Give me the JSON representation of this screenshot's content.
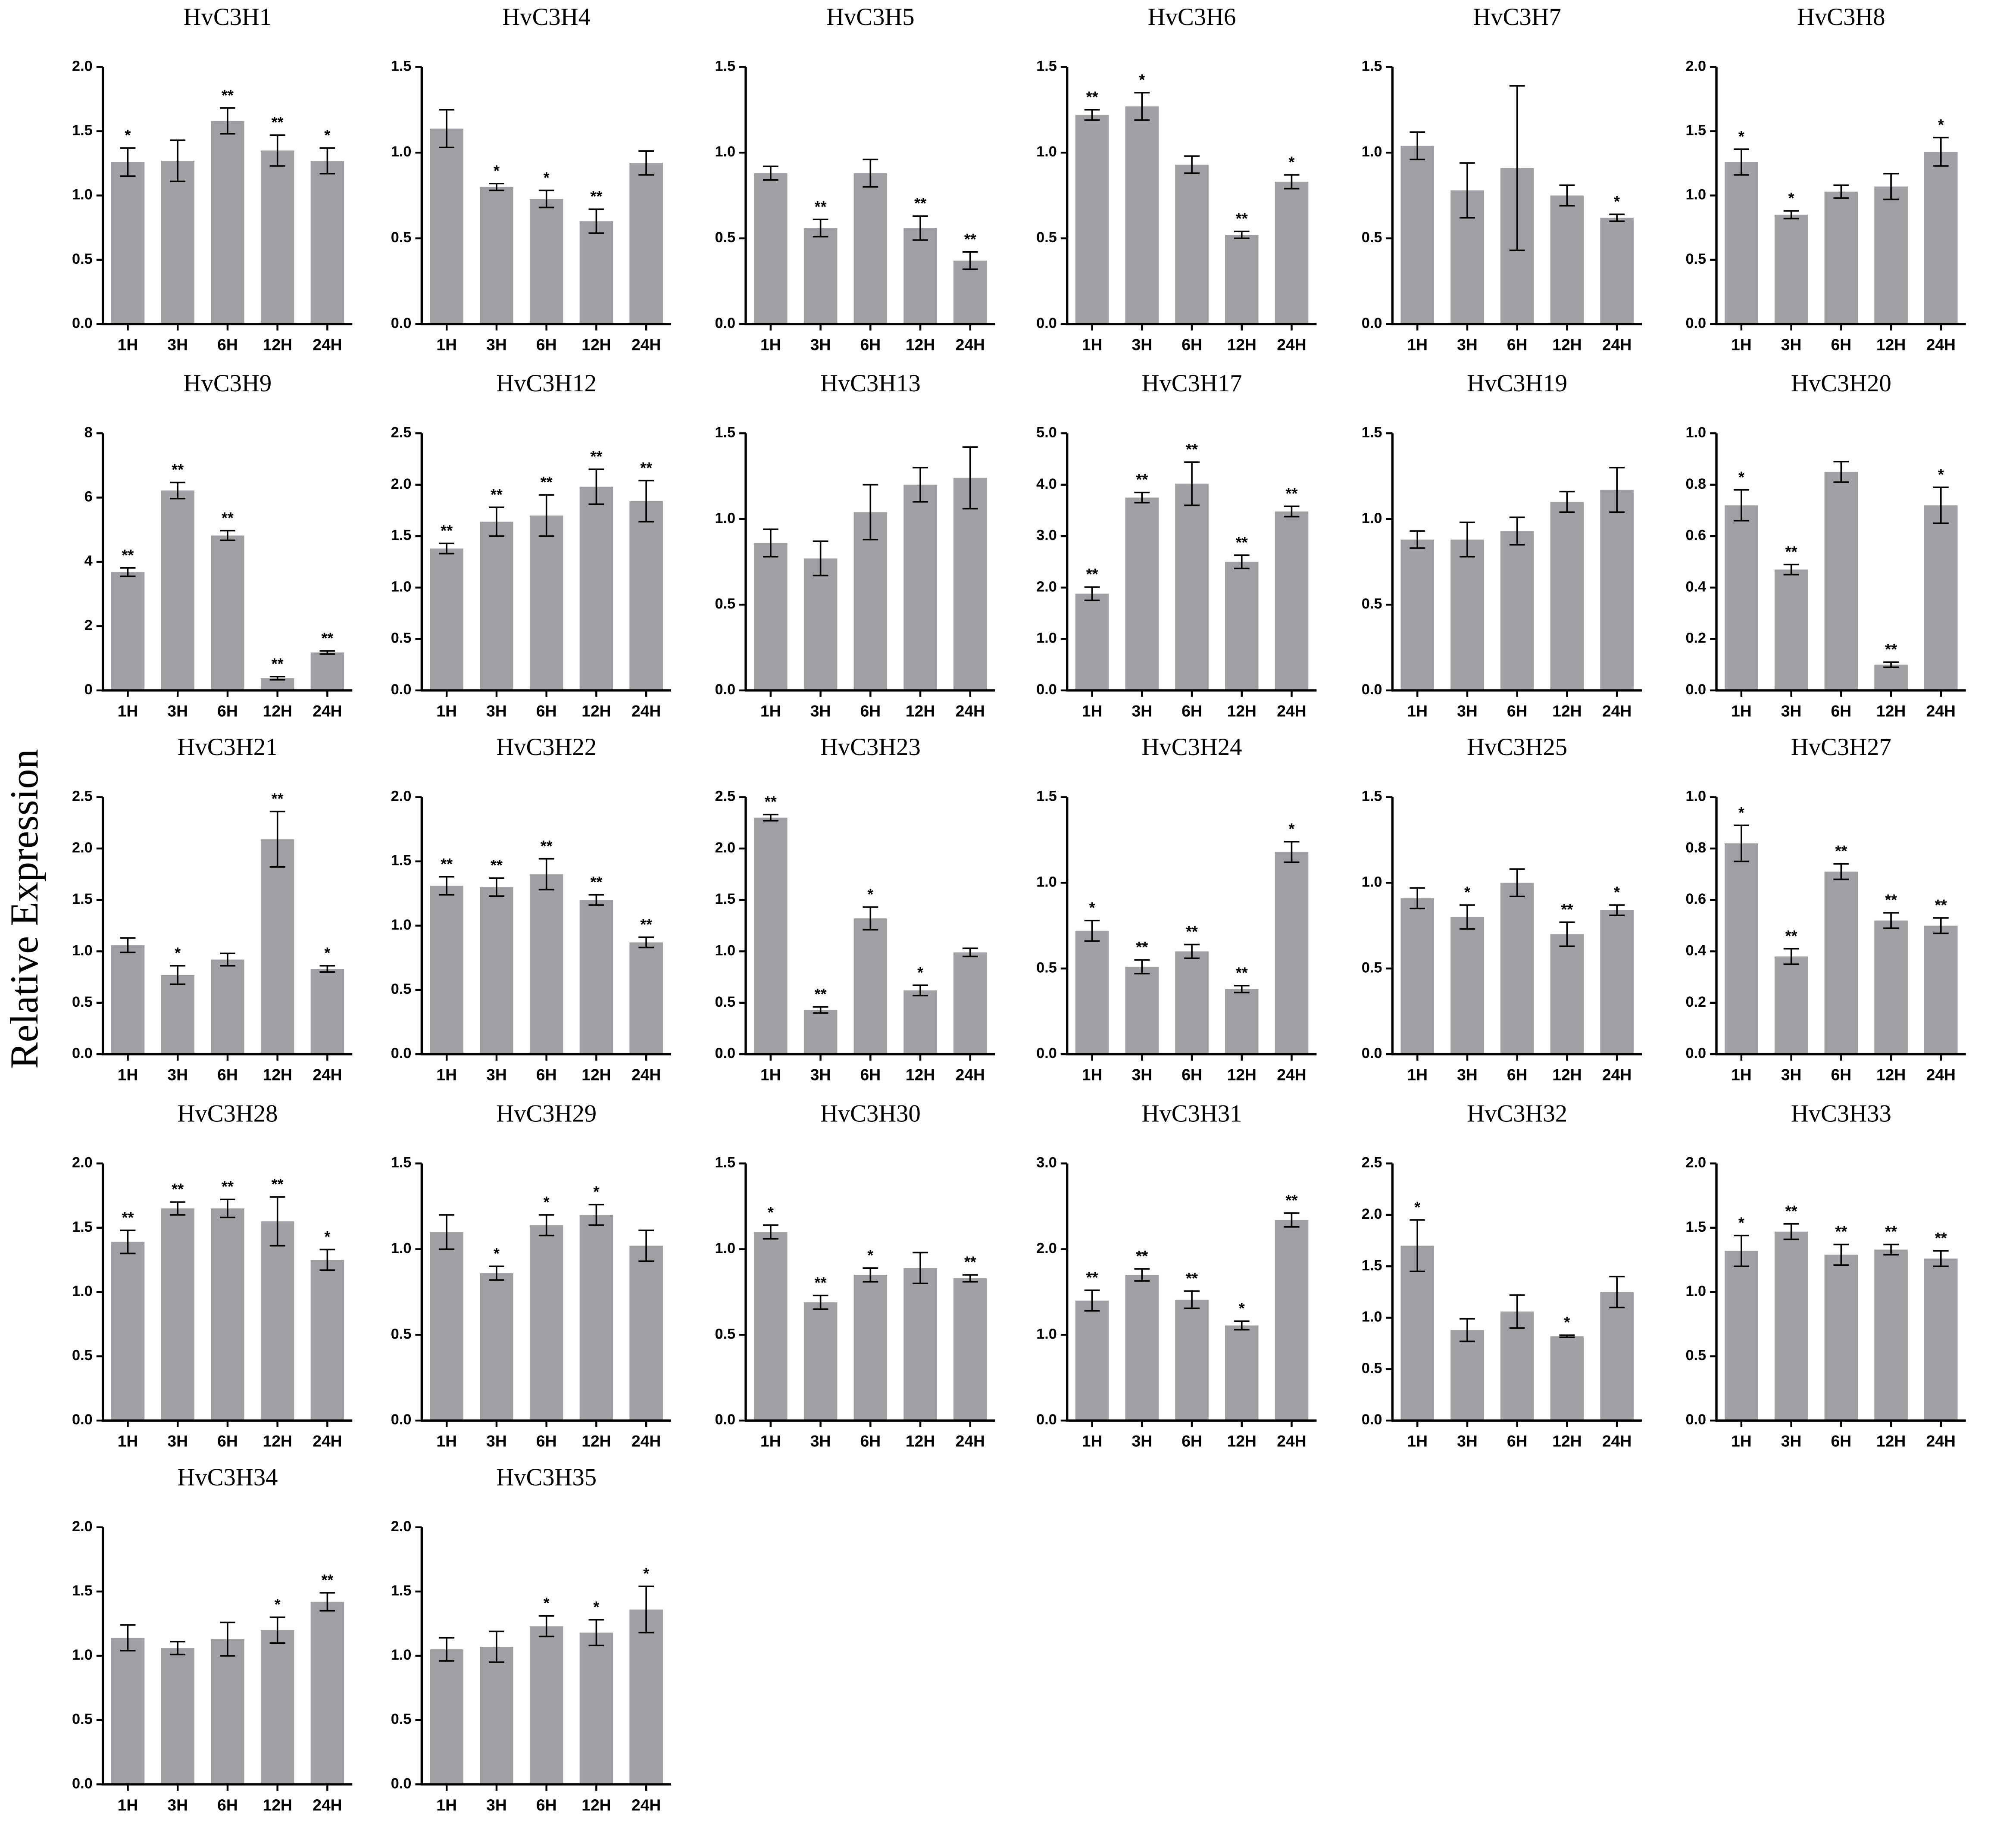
{
  "y_label": "Relative Expression",
  "chart_data": [
    {
      "type": "bar",
      "title": "HvC3H1",
      "categories": [
        "1H",
        "3H",
        "6H",
        "12H",
        "24H"
      ],
      "values": [
        1.26,
        1.27,
        1.58,
        1.35,
        1.27
      ],
      "errors": [
        0.11,
        0.16,
        0.1,
        0.12,
        0.1
      ],
      "annotations": [
        "*",
        null,
        "**",
        "**",
        "*"
      ],
      "ylim": [
        0,
        2
      ],
      "yticks": [
        {
          "value": 0,
          "label": "0.0"
        },
        0.5,
        {
          "value": 1,
          "label": "1.0"
        },
        1.5,
        {
          "value": 2,
          "label": "2.0"
        }
      ],
      "color": "#a0a0a4"
    },
    {
      "type": "bar",
      "title": "HvC3H4",
      "categories": [
        "1H",
        "3H",
        "6H",
        "12H",
        "24H"
      ],
      "values": [
        1.14,
        0.8,
        0.73,
        0.6,
        0.94
      ],
      "errors": [
        0.11,
        0.02,
        0.05,
        0.07,
        0.07
      ],
      "annotations": [
        null,
        "*",
        "*",
        "**",
        null
      ],
      "ylim": [
        0,
        1.5
      ],
      "yticks": [
        {
          "value": 0,
          "label": "0.0"
        },
        0.5,
        {
          "value": 1,
          "label": "1.0"
        },
        1.5
      ],
      "color": "#a0a0a4"
    },
    {
      "type": "bar",
      "title": "HvC3H5",
      "categories": [
        "1H",
        "3H",
        "6H",
        "12H",
        "24H"
      ],
      "values": [
        0.88,
        0.56,
        0.88,
        0.56,
        0.37
      ],
      "errors": [
        0.04,
        0.05,
        0.08,
        0.07,
        0.05
      ],
      "annotations": [
        null,
        "**",
        null,
        "**",
        "**"
      ],
      "ylim": [
        0,
        1.5
      ],
      "yticks": [
        {
          "value": 0,
          "label": "0.0"
        },
        0.5,
        {
          "value": 1,
          "label": "1.0"
        },
        1.5
      ],
      "color": "#a0a0a4"
    },
    {
      "type": "bar",
      "title": "HvC3H6",
      "categories": [
        "1H",
        "3H",
        "6H",
        "12H",
        "24H"
      ],
      "values": [
        1.22,
        1.27,
        0.93,
        0.52,
        0.83
      ],
      "errors": [
        0.03,
        0.08,
        0.05,
        0.02,
        0.04
      ],
      "annotations": [
        "**",
        "*",
        null,
        "**",
        "*"
      ],
      "ylim": [
        0,
        1.5
      ],
      "yticks": [
        {
          "value": 0,
          "label": "0.0"
        },
        0.5,
        {
          "value": 1,
          "label": "1.0"
        },
        1.5
      ],
      "color": "#a0a0a4"
    },
    {
      "type": "bar",
      "title": "HvC3H7",
      "categories": [
        "1H",
        "3H",
        "6H",
        "12H",
        "24H"
      ],
      "values": [
        1.04,
        0.78,
        0.91,
        0.75,
        0.62
      ],
      "errors": [
        0.08,
        0.16,
        0.48,
        0.06,
        0.02
      ],
      "annotations": [
        null,
        null,
        null,
        null,
        "*"
      ],
      "ylim": [
        0,
        1.5
      ],
      "yticks": [
        {
          "value": 0,
          "label": "0.0"
        },
        0.5,
        {
          "value": 1,
          "label": "1.0"
        },
        1.5
      ],
      "color": "#a0a0a4"
    },
    {
      "type": "bar",
      "title": "HvC3H8",
      "categories": [
        "1H",
        "3H",
        "6H",
        "12H",
        "24H"
      ],
      "values": [
        1.26,
        0.85,
        1.03,
        1.07,
        1.34
      ],
      "errors": [
        0.1,
        0.03,
        0.05,
        0.1,
        0.11
      ],
      "annotations": [
        "*",
        "*",
        null,
        null,
        "*"
      ],
      "ylim": [
        0,
        2
      ],
      "yticks": [
        {
          "value": 0,
          "label": "0.0"
        },
        0.5,
        {
          "value": 1,
          "label": "1.0"
        },
        1.5,
        {
          "value": 2,
          "label": "2.0"
        }
      ],
      "color": "#a0a0a4"
    },
    {
      "type": "bar",
      "title": "HvC3H9",
      "categories": [
        "1H",
        "3H",
        "6H",
        "12H",
        "24H"
      ],
      "values": [
        3.68,
        6.22,
        4.82,
        0.38,
        1.18
      ],
      "errors": [
        0.13,
        0.25,
        0.15,
        0.05,
        0.05
      ],
      "annotations": [
        "**",
        "**",
        "**",
        "**",
        "**"
      ],
      "ylim": [
        0,
        8
      ],
      "yticks": [
        0,
        2,
        4,
        6,
        8
      ],
      "color": "#a0a0a4"
    },
    {
      "type": "bar",
      "title": "HvC3H12",
      "categories": [
        "1H",
        "3H",
        "6H",
        "12H",
        "24H"
      ],
      "values": [
        1.38,
        1.64,
        1.7,
        1.98,
        1.84
      ],
      "errors": [
        0.05,
        0.14,
        0.2,
        0.17,
        0.2
      ],
      "annotations": [
        "**",
        "**",
        "**",
        "**",
        "**"
      ],
      "ylim": [
        0,
        2.5
      ],
      "yticks": [
        {
          "value": 0,
          "label": "0.0"
        },
        0.5,
        {
          "value": 1,
          "label": "1.0"
        },
        1.5,
        {
          "value": 2,
          "label": "2.0"
        },
        2.5
      ],
      "color": "#a0a0a4"
    },
    {
      "type": "bar",
      "title": "HvC3H13",
      "categories": [
        "1H",
        "3H",
        "6H",
        "12H",
        "24H"
      ],
      "values": [
        0.86,
        0.77,
        1.04,
        1.2,
        1.24
      ],
      "errors": [
        0.08,
        0.1,
        0.16,
        0.1,
        0.18
      ],
      "annotations": [
        null,
        null,
        null,
        null,
        null
      ],
      "ylim": [
        0,
        1.5
      ],
      "yticks": [
        {
          "value": 0,
          "label": "0.0"
        },
        0.5,
        {
          "value": 1,
          "label": "1.0"
        },
        1.5
      ],
      "color": "#a0a0a4"
    },
    {
      "type": "bar",
      "title": "HvC3H17",
      "categories": [
        "1H",
        "3H",
        "6H",
        "12H",
        "24H"
      ],
      "values": [
        1.88,
        3.75,
        4.02,
        2.5,
        3.48
      ],
      "errors": [
        0.13,
        0.1,
        0.42,
        0.13,
        0.1
      ],
      "annotations": [
        "**",
        "**",
        "**",
        "**",
        "**"
      ],
      "ylim": [
        0,
        5
      ],
      "yticks": [
        {
          "value": 0,
          "label": "0.0"
        },
        {
          "value": 1,
          "label": "1.0"
        },
        {
          "value": 2,
          "label": "2.0"
        },
        {
          "value": 3,
          "label": "3.0"
        },
        {
          "value": 4,
          "label": "4.0"
        },
        {
          "value": 5,
          "label": "5.0"
        }
      ],
      "color": "#a0a0a4"
    },
    {
      "type": "bar",
      "title": "HvC3H19",
      "categories": [
        "1H",
        "3H",
        "6H",
        "12H",
        "24H"
      ],
      "values": [
        0.88,
        0.88,
        0.93,
        1.1,
        1.17
      ],
      "errors": [
        0.05,
        0.1,
        0.08,
        0.06,
        0.13
      ],
      "annotations": [
        null,
        null,
        null,
        null,
        null
      ],
      "ylim": [
        0,
        1.5
      ],
      "yticks": [
        {
          "value": 0,
          "label": "0.0"
        },
        0.5,
        {
          "value": 1,
          "label": "1.0"
        },
        1.5
      ],
      "color": "#a0a0a4"
    },
    {
      "type": "bar",
      "title": "HvC3H20",
      "categories": [
        "1H",
        "3H",
        "6H",
        "12H",
        "24H"
      ],
      "values": [
        0.72,
        0.47,
        0.85,
        0.1,
        0.72
      ],
      "errors": [
        0.06,
        0.02,
        0.04,
        0.01,
        0.07
      ],
      "annotations": [
        "*",
        "**",
        null,
        "**",
        "*"
      ],
      "ylim": [
        0,
        1
      ],
      "yticks": [
        {
          "value": 0,
          "label": "0.0"
        },
        0.2,
        0.4,
        0.6,
        0.8,
        {
          "value": 1,
          "label": "1.0"
        }
      ],
      "color": "#a0a0a4"
    },
    {
      "type": "bar",
      "title": "HvC3H21",
      "categories": [
        "1H",
        "3H",
        "6H",
        "12H",
        "24H"
      ],
      "values": [
        1.06,
        0.77,
        0.92,
        2.09,
        0.83
      ],
      "errors": [
        0.07,
        0.09,
        0.06,
        0.27,
        0.03
      ],
      "annotations": [
        null,
        "*",
        null,
        "**",
        "*"
      ],
      "ylim": [
        0,
        2.5
      ],
      "yticks": [
        {
          "value": 0,
          "label": "0.0"
        },
        0.5,
        {
          "value": 1,
          "label": "1.0"
        },
        1.5,
        {
          "value": 2,
          "label": "2.0"
        },
        2.5
      ],
      "color": "#a0a0a4"
    },
    {
      "type": "bar",
      "title": "HvC3H22",
      "categories": [
        "1H",
        "3H",
        "6H",
        "12H",
        "24H"
      ],
      "values": [
        1.31,
        1.3,
        1.4,
        1.2,
        0.87
      ],
      "errors": [
        0.07,
        0.07,
        0.12,
        0.04,
        0.04
      ],
      "annotations": [
        "**",
        "**",
        "**",
        "**",
        "**"
      ],
      "ylim": [
        0,
        2
      ],
      "yticks": [
        {
          "value": 0,
          "label": "0.0"
        },
        0.5,
        {
          "value": 1,
          "label": "1.0"
        },
        1.5,
        {
          "value": 2,
          "label": "2.0"
        }
      ],
      "color": "#a0a0a4"
    },
    {
      "type": "bar",
      "title": "HvC3H23",
      "categories": [
        "1H",
        "3H",
        "6H",
        "12H",
        "24H"
      ],
      "values": [
        2.3,
        0.43,
        1.32,
        0.62,
        0.99
      ],
      "errors": [
        0.03,
        0.03,
        0.11,
        0.05,
        0.04
      ],
      "annotations": [
        "**",
        "**",
        "*",
        "*",
        null
      ],
      "ylim": [
        0,
        2.5
      ],
      "yticks": [
        {
          "value": 0,
          "label": "0.0"
        },
        0.5,
        {
          "value": 1,
          "label": "1.0"
        },
        1.5,
        {
          "value": 2,
          "label": "2.0"
        },
        2.5
      ],
      "color": "#a0a0a4"
    },
    {
      "type": "bar",
      "title": "HvC3H24",
      "categories": [
        "1H",
        "3H",
        "6H",
        "12H",
        "24H"
      ],
      "values": [
        0.72,
        0.51,
        0.6,
        0.38,
        1.18
      ],
      "errors": [
        0.06,
        0.04,
        0.04,
        0.02,
        0.06
      ],
      "annotations": [
        "*",
        "**",
        "**",
        "**",
        "*"
      ],
      "ylim": [
        0,
        1.5
      ],
      "yticks": [
        {
          "value": 0,
          "label": "0.0"
        },
        0.5,
        {
          "value": 1,
          "label": "1.0"
        },
        1.5
      ],
      "color": "#a0a0a4"
    },
    {
      "type": "bar",
      "title": "HvC3H25",
      "categories": [
        "1H",
        "3H",
        "6H",
        "12H",
        "24H"
      ],
      "values": [
        0.91,
        0.8,
        1.0,
        0.7,
        0.84
      ],
      "errors": [
        0.06,
        0.07,
        0.08,
        0.07,
        0.03
      ],
      "annotations": [
        null,
        "*",
        null,
        "**",
        "*"
      ],
      "ylim": [
        0,
        1.5
      ],
      "yticks": [
        {
          "value": 0,
          "label": "0.0"
        },
        0.5,
        {
          "value": 1,
          "label": "1.0"
        },
        1.5
      ],
      "color": "#a0a0a4"
    },
    {
      "type": "bar",
      "title": "HvC3H27",
      "categories": [
        "1H",
        "3H",
        "6H",
        "12H",
        "24H"
      ],
      "values": [
        0.82,
        0.38,
        0.71,
        0.52,
        0.5
      ],
      "errors": [
        0.07,
        0.03,
        0.03,
        0.03,
        0.03
      ],
      "annotations": [
        "*",
        "**",
        "**",
        "**",
        "**"
      ],
      "ylim": [
        0,
        1
      ],
      "yticks": [
        {
          "value": 0,
          "label": "0.0"
        },
        0.2,
        0.4,
        0.6,
        0.8,
        {
          "value": 1,
          "label": "1.0"
        }
      ],
      "color": "#a0a0a4"
    },
    {
      "type": "bar",
      "title": "HvC3H28",
      "categories": [
        "1H",
        "3H",
        "6H",
        "12H",
        "24H"
      ],
      "values": [
        1.39,
        1.65,
        1.65,
        1.55,
        1.25
      ],
      "errors": [
        0.09,
        0.05,
        0.07,
        0.19,
        0.08
      ],
      "annotations": [
        "**",
        "**",
        "**",
        "**",
        "*"
      ],
      "ylim": [
        0,
        2
      ],
      "yticks": [
        {
          "value": 0,
          "label": "0.0"
        },
        0.5,
        {
          "value": 1,
          "label": "1.0"
        },
        1.5,
        {
          "value": 2,
          "label": "2.0"
        }
      ],
      "color": "#a0a0a4"
    },
    {
      "type": "bar",
      "title": "HvC3H29",
      "categories": [
        "1H",
        "3H",
        "6H",
        "12H",
        "24H"
      ],
      "values": [
        1.1,
        0.86,
        1.14,
        1.2,
        1.02
      ],
      "errors": [
        0.1,
        0.04,
        0.06,
        0.06,
        0.09
      ],
      "annotations": [
        null,
        "*",
        "*",
        "*",
        null
      ],
      "ylim": [
        0,
        1.5
      ],
      "yticks": [
        {
          "value": 0,
          "label": "0.0"
        },
        0.5,
        {
          "value": 1,
          "label": "1.0"
        },
        1.5
      ],
      "color": "#a0a0a4"
    },
    {
      "type": "bar",
      "title": "HvC3H30",
      "categories": [
        "1H",
        "3H",
        "6H",
        "12H",
        "24H"
      ],
      "values": [
        1.1,
        0.69,
        0.85,
        0.89,
        0.83
      ],
      "errors": [
        0.04,
        0.04,
        0.04,
        0.09,
        0.02
      ],
      "annotations": [
        "*",
        "**",
        "*",
        null,
        "**"
      ],
      "ylim": [
        0,
        1.5
      ],
      "yticks": [
        {
          "value": 0,
          "label": "0.0"
        },
        0.5,
        {
          "value": 1,
          "label": "1.0"
        },
        1.5
      ],
      "color": "#a0a0a4"
    },
    {
      "type": "bar",
      "title": "HvC3H31",
      "categories": [
        "1H",
        "3H",
        "6H",
        "12H",
        "24H"
      ],
      "values": [
        1.4,
        1.7,
        1.41,
        1.11,
        2.34
      ],
      "errors": [
        0.12,
        0.07,
        0.1,
        0.05,
        0.08
      ],
      "annotations": [
        "**",
        "**",
        "**",
        "*",
        "**"
      ],
      "ylim": [
        0,
        3
      ],
      "yticks": [
        {
          "value": 0,
          "label": "0.0"
        },
        {
          "value": 1,
          "label": "1.0"
        },
        {
          "value": 2,
          "label": "2.0"
        },
        {
          "value": 3,
          "label": "3.0"
        }
      ],
      "color": "#a0a0a4"
    },
    {
      "type": "bar",
      "title": "HvC3H32",
      "categories": [
        "1H",
        "3H",
        "6H",
        "12H",
        "24H"
      ],
      "values": [
        1.7,
        0.88,
        1.06,
        0.82,
        1.25
      ],
      "errors": [
        0.25,
        0.11,
        0.16,
        0.01,
        0.15
      ],
      "annotations": [
        "*",
        null,
        null,
        "*",
        null
      ],
      "ylim": [
        0,
        2.5
      ],
      "yticks": [
        {
          "value": 0,
          "label": "0.0"
        },
        0.5,
        {
          "value": 1,
          "label": "1.0"
        },
        1.5,
        {
          "value": 2,
          "label": "2.0"
        },
        2.5
      ],
      "color": "#a0a0a4"
    },
    {
      "type": "bar",
      "title": "HvC3H33",
      "categories": [
        "1H",
        "3H",
        "6H",
        "12H",
        "24H"
      ],
      "values": [
        1.32,
        1.47,
        1.29,
        1.33,
        1.26
      ],
      "errors": [
        0.12,
        0.06,
        0.08,
        0.04,
        0.06
      ],
      "annotations": [
        "*",
        "**",
        "**",
        "**",
        "**"
      ],
      "ylim": [
        0,
        2
      ],
      "yticks": [
        {
          "value": 0,
          "label": "0.0"
        },
        0.5,
        {
          "value": 1,
          "label": "1.0"
        },
        1.5,
        {
          "value": 2,
          "label": "2.0"
        }
      ],
      "color": "#a0a0a4"
    },
    {
      "type": "bar",
      "title": "HvC3H34",
      "categories": [
        "1H",
        "3H",
        "6H",
        "12H",
        "24H"
      ],
      "values": [
        1.14,
        1.06,
        1.13,
        1.2,
        1.42
      ],
      "errors": [
        0.1,
        0.05,
        0.13,
        0.1,
        0.07
      ],
      "annotations": [
        null,
        null,
        null,
        "*",
        "**"
      ],
      "ylim": [
        0,
        2
      ],
      "yticks": [
        {
          "value": 0,
          "label": "0.0"
        },
        0.5,
        {
          "value": 1,
          "label": "1.0"
        },
        1.5,
        {
          "value": 2,
          "label": "2.0"
        }
      ],
      "color": "#a0a0a4"
    },
    {
      "type": "bar",
      "title": "HvC3H35",
      "categories": [
        "1H",
        "3H",
        "6H",
        "12H",
        "24H"
      ],
      "values": [
        1.05,
        1.07,
        1.23,
        1.18,
        1.36
      ],
      "errors": [
        0.09,
        0.12,
        0.08,
        0.1,
        0.18
      ],
      "annotations": [
        null,
        null,
        "*",
        "*",
        "*"
      ],
      "ylim": [
        0,
        2
      ],
      "yticks": [
        {
          "value": 0,
          "label": "0.0"
        },
        0.5,
        {
          "value": 1,
          "label": "1.0"
        },
        1.5,
        {
          "value": 2,
          "label": "2.0"
        }
      ],
      "color": "#a0a0a4"
    }
  ]
}
